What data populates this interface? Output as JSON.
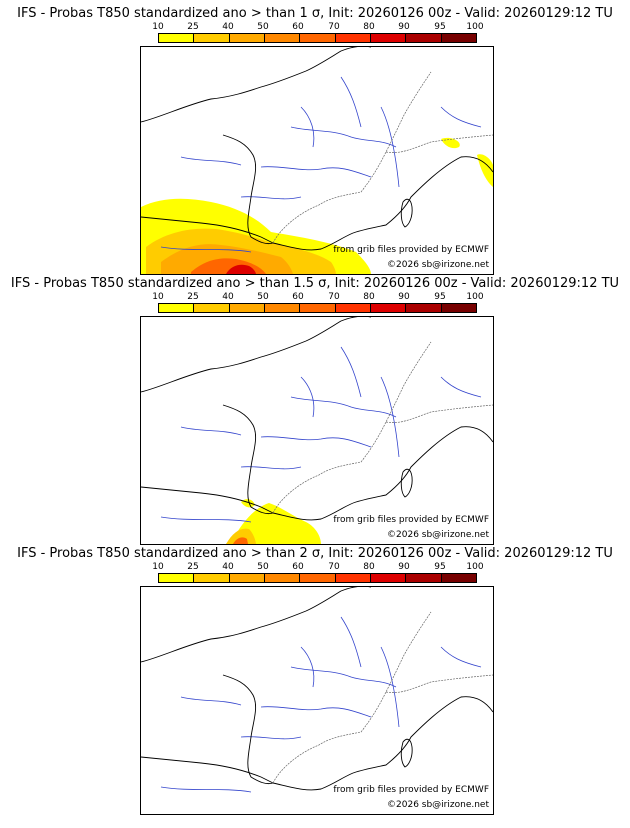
{
  "scale": {
    "ticks": [
      "10",
      "25",
      "40",
      "50",
      "60",
      "70",
      "80",
      "90",
      "95",
      "100"
    ],
    "colors": [
      "#ffff00",
      "#ffcc00",
      "#ffaa00",
      "#ff8800",
      "#ff6600",
      "#ff3300",
      "#dd0000",
      "#aa0000",
      "#770000"
    ]
  },
  "panels": [
    {
      "title": "IFS - Probas T850  standardized ano > than 1 σ, Init: 20260126 00z - Valid: 20260129:12 TU",
      "sigma": 1,
      "intensity": "high"
    },
    {
      "title": "IFS - Probas T850  standardized ano > than 1.5 σ, Init: 20260126 00z - Valid: 20260129:12 TU",
      "sigma": 1.5,
      "intensity": "medium"
    },
    {
      "title": "IFS - Probas T850  standardized ano > than 2 σ, Init: 20260126 00z - Valid: 20260129:12 TU",
      "sigma": 2,
      "intensity": "none"
    }
  ],
  "credits": {
    "source": "from grib files provided by ECMWF",
    "copyright": "©2026 sb@irizone.net"
  }
}
